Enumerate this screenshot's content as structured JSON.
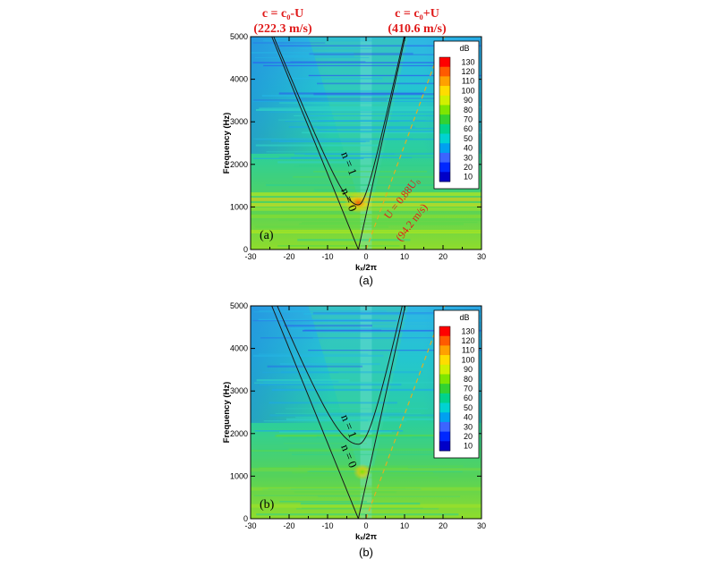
{
  "figure": {
    "top_annotation_left_line1": "c = c₀-U",
    "top_annotation_left_line2": "(222.3 m/s)",
    "top_annotation_right_line1": "c = c₀+U",
    "top_annotation_right_line2": "(410.6 m/s)",
    "annotation_color": "#e01a1a",
    "convective_line_label": "U = 0.88U₀",
    "convective_line_speed": "(94.2 m/s)",
    "mode_label_n0": "n = 0",
    "mode_label_n1": "n = 1"
  },
  "chart_data": [
    {
      "type": "heatmap",
      "panel_tag": "(a)",
      "caption": "(a)",
      "xlabel": "kₓ/2π",
      "ylabel": "Frequency (Hz)",
      "xlim": [
        -30,
        30
      ],
      "ylim": [
        0,
        5000
      ],
      "x_ticks": [
        -30,
        -20,
        -10,
        0,
        10,
        20,
        30
      ],
      "y_ticks": [
        0,
        1000,
        2000,
        3000,
        4000,
        5000
      ],
      "colorbar": {
        "title": "dB",
        "levels": [
          130,
          120,
          110,
          100,
          90,
          80,
          70,
          60,
          50,
          40,
          30,
          20,
          10
        ],
        "colors": [
          "#ff0000",
          "#ff5a00",
          "#ffa000",
          "#ffdc00",
          "#d2f000",
          "#7ee600",
          "#32d232",
          "#00d28c",
          "#00d2d2",
          "#00a0f0",
          "#3c64ff",
          "#0028ff",
          "#0000c8"
        ],
        "placement": "top-right"
      },
      "dispersion_curves": [
        {
          "mode": "n = 0",
          "cutoff_hz": 0
        },
        {
          "mode": "n = 1",
          "cutoff_hz": 1050
        }
      ],
      "acoustic_speeds_ms": {
        "upstream": 222.3,
        "downstream": 410.6
      },
      "convective_speed_ms": 94.2,
      "hotspot": {
        "kx": -2,
        "freq_hz": 1100,
        "db": 120
      }
    },
    {
      "type": "heatmap",
      "panel_tag": "(b)",
      "caption": "(b)",
      "xlabel": "kₓ/2π",
      "ylabel": "Frequency (Hz)",
      "xlim": [
        -30,
        30
      ],
      "ylim": [
        0,
        5000
      ],
      "x_ticks": [
        -30,
        -20,
        -10,
        0,
        10,
        20,
        30
      ],
      "y_ticks": [
        0,
        1000,
        2000,
        3000,
        4000,
        5000
      ],
      "colorbar": {
        "title": "dB",
        "levels": [
          130,
          120,
          110,
          100,
          90,
          80,
          70,
          60,
          50,
          40,
          30,
          20,
          10
        ],
        "colors": [
          "#ff0000",
          "#ff5a00",
          "#ffa000",
          "#ffdc00",
          "#d2f000",
          "#7ee600",
          "#32d232",
          "#00d28c",
          "#00d2d2",
          "#00a0f0",
          "#3c64ff",
          "#0028ff",
          "#0000c8"
        ],
        "placement": "top-right"
      },
      "dispersion_curves": [
        {
          "mode": "n = 0",
          "cutoff_hz": 0
        },
        {
          "mode": "n = 1",
          "cutoff_hz": 1750
        }
      ],
      "acoustic_speeds_ms": {
        "upstream": 222.3,
        "downstream": 410.6
      },
      "convective_speed_ms": 94.2,
      "hotspot": {
        "kx": -1,
        "freq_hz": 1100,
        "db": 85
      }
    }
  ]
}
